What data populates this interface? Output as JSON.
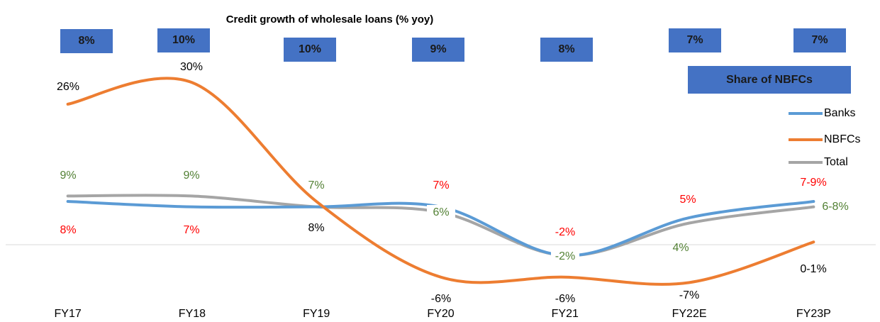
{
  "chart_data": {
    "type": "line",
    "title": "Credit growth of wholesale loans (% yoy)",
    "categories": [
      "FY17",
      "FY18",
      "FY19",
      "FY20",
      "FY21",
      "FY22E",
      "FY23P"
    ],
    "series": [
      {
        "name": "Banks",
        "color": "#5b9bd5",
        "values": [
          8,
          7,
          7,
          7,
          -2,
          5,
          8
        ],
        "value_labels": [
          "8%",
          "7%",
          null,
          "7%",
          "-2%",
          "5%",
          "7-9%"
        ],
        "label_color": "#ff0000"
      },
      {
        "name": "NBFCs",
        "color": "#ed7d31",
        "values": [
          26,
          30,
          8,
          -6,
          -6,
          -7,
          0.5
        ],
        "value_labels": [
          "26%",
          "30%",
          "8%",
          "-6%",
          "-6%",
          "-7%",
          "0-1%"
        ],
        "label_color": "#000000"
      },
      {
        "name": "Total",
        "color": "#a5a5a5",
        "values": [
          9,
          9,
          7,
          6,
          -2,
          4,
          7
        ],
        "value_labels": [
          "9%",
          "9%",
          "7%",
          "6%",
          "-2%",
          "4%",
          "6-8%"
        ],
        "label_color": "#538135"
      }
    ],
    "share_of_nbfcs": {
      "label": "Share of NBFCs",
      "color": "#4472c4",
      "values": [
        8,
        10,
        10,
        9,
        8,
        7,
        7
      ],
      "value_labels": [
        "8%",
        "10%",
        "10%",
        "9%",
        "8%",
        "7%",
        "7%"
      ]
    },
    "ylim": [
      -10,
      32
    ],
    "legend": "right"
  }
}
